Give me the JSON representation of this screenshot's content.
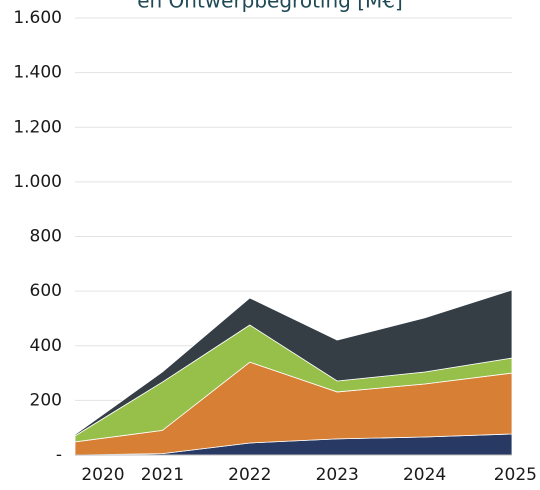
{
  "chart_data": {
    "type": "stacked_area",
    "title": "en Ontwerpbegroting [M€]",
    "categories": [
      "2020",
      "2021",
      "2022",
      "2023",
      "2024",
      "2025"
    ],
    "series": [
      {
        "color": "#283a63",
        "values": [
          0,
          5,
          44,
          59,
          66,
          77
        ]
      },
      {
        "color": "#d77f35",
        "values": [
          48,
          85,
          296,
          172,
          194,
          223
        ]
      },
      {
        "color": "#97c04a",
        "values": [
          22,
          177,
          136,
          40,
          44,
          55
        ]
      },
      {
        "color": "#353d45",
        "values": [
          5,
          37,
          99,
          150,
          198,
          249
        ]
      }
    ],
    "ylim": [
      0,
      1600
    ],
    "yticks": [
      {
        "value": 0,
        "label": "-"
      },
      200,
      400,
      600,
      800,
      {
        "value": 1000,
        "label": "1.000"
      },
      {
        "value": 1200,
        "label": "1.200"
      },
      {
        "value": 1400,
        "label": "1.400"
      },
      {
        "value": 1600,
        "label": "1.600"
      }
    ],
    "grid": true
  }
}
